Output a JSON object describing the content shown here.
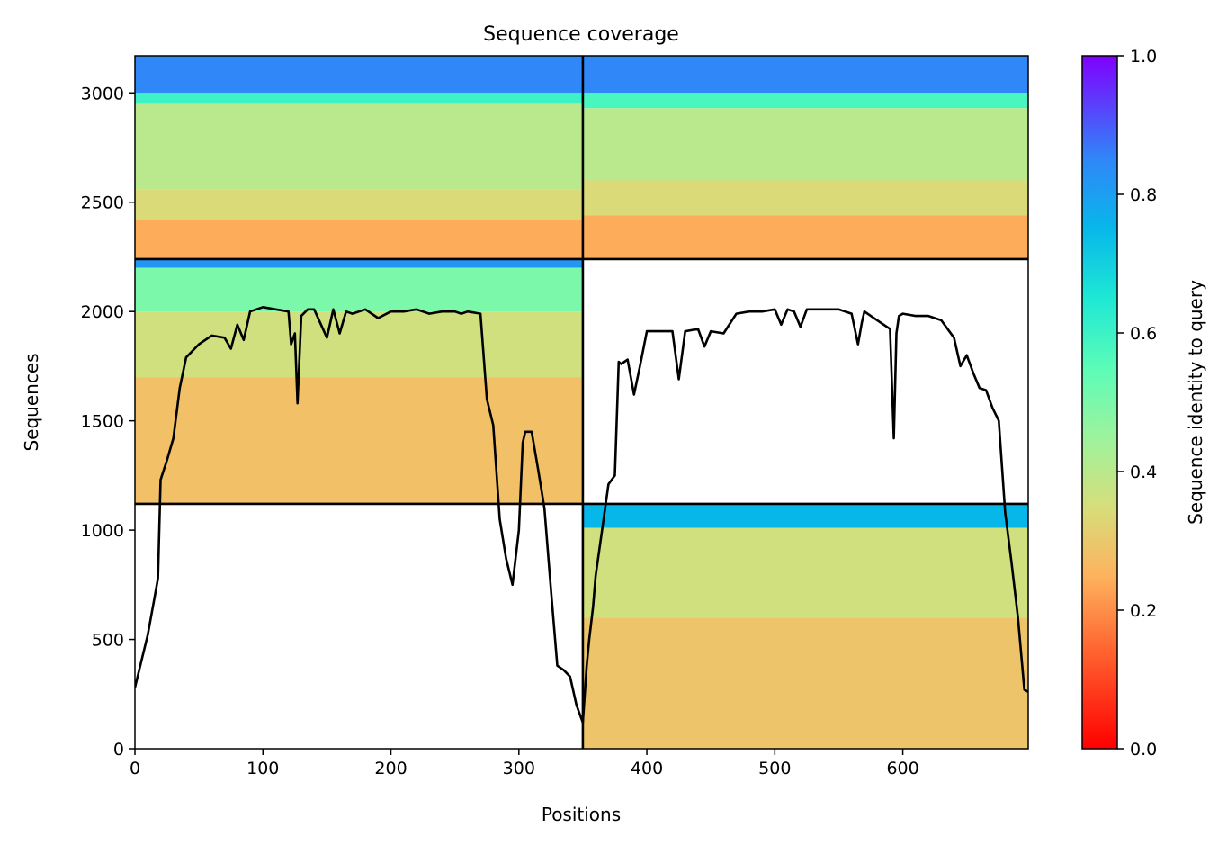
{
  "chart_data": {
    "type": "heatmap",
    "title": "Sequence coverage",
    "xlabel": "Positions",
    "ylabel": "Sequences",
    "xlim": [
      0,
      698
    ],
    "ylim": [
      0,
      3170
    ],
    "x_ticks": [
      0,
      100,
      200,
      300,
      400,
      500,
      600
    ],
    "y_ticks": [
      0,
      500,
      1000,
      1500,
      2000,
      2500,
      3000
    ],
    "grid": false,
    "chain_boundaries": {
      "x": [
        350
      ],
      "y": [
        1120,
        2240
      ]
    },
    "blocks": [
      {
        "x_range": [
          0,
          350
        ],
        "y_range": [
          2240,
          3170
        ],
        "bands": [
          {
            "y": [
              3000,
              3170
            ],
            "identity": 0.85
          },
          {
            "y": [
              2950,
              3000
            ],
            "identity": 0.6
          },
          {
            "y": [
              2560,
              2950
            ],
            "identity": 0.4
          },
          {
            "y": [
              2420,
              2560
            ],
            "identity": 0.34
          },
          {
            "y": [
              2240,
              2420
            ],
            "identity": 0.24
          }
        ]
      },
      {
        "x_range": [
          350,
          698
        ],
        "y_range": [
          2240,
          3170
        ],
        "bands": [
          {
            "y": [
              3000,
              3170
            ],
            "identity": 0.85
          },
          {
            "y": [
              2930,
              3000
            ],
            "identity": 0.58
          },
          {
            "y": [
              2600,
              2930
            ],
            "identity": 0.4
          },
          {
            "y": [
              2440,
              2600
            ],
            "identity": 0.34
          },
          {
            "y": [
              2240,
              2440
            ],
            "identity": 0.24
          }
        ]
      },
      {
        "x_range": [
          0,
          350
        ],
        "y_range": [
          1120,
          2240
        ],
        "bands": [
          {
            "y": [
              2200,
              2240
            ],
            "identity": 0.82
          },
          {
            "y": [
              2000,
              2200
            ],
            "identity": 0.5
          },
          {
            "y": [
              1700,
              2000
            ],
            "identity": 0.36
          },
          {
            "y": [
              1120,
              1700
            ],
            "identity": 0.28
          }
        ]
      },
      {
        "x_range": [
          350,
          698
        ],
        "y_range": [
          0,
          1120
        ],
        "bands": [
          {
            "y": [
              1010,
              1120
            ],
            "identity": 0.75
          },
          {
            "y": [
              600,
              1010
            ],
            "identity": 0.36
          },
          {
            "y": [
              0,
              600
            ],
            "identity": 0.29
          }
        ]
      }
    ],
    "coverage": {
      "x": [
        0,
        5,
        10,
        15,
        18,
        20,
        25,
        30,
        35,
        40,
        50,
        60,
        70,
        75,
        80,
        85,
        90,
        100,
        110,
        120,
        122,
        125,
        127,
        130,
        135,
        140,
        150,
        155,
        160,
        165,
        170,
        180,
        190,
        200,
        210,
        220,
        230,
        240,
        250,
        255,
        260,
        270,
        275,
        280,
        285,
        290,
        295,
        300,
        303,
        305,
        310,
        315,
        320,
        325,
        330,
        335,
        340,
        345,
        350,
        353,
        355,
        358,
        360,
        365,
        370,
        375,
        378,
        380,
        385,
        390,
        395,
        400,
        410,
        420,
        425,
        430,
        440,
        445,
        450,
        460,
        470,
        480,
        490,
        500,
        505,
        510,
        515,
        520,
        525,
        530,
        540,
        550,
        560,
        565,
        568,
        570,
        575,
        580,
        590,
        593,
        595,
        597,
        600,
        610,
        620,
        630,
        640,
        645,
        650,
        655,
        660,
        665,
        670,
        675,
        680,
        685,
        690,
        695,
        698
      ],
      "y": [
        280,
        400,
        520,
        680,
        780,
        1230,
        1320,
        1420,
        1650,
        1790,
        1850,
        1890,
        1880,
        1830,
        1940,
        1870,
        2000,
        2020,
        2010,
        2000,
        1850,
        1900,
        1580,
        1980,
        2010,
        2010,
        1880,
        2010,
        1900,
        2000,
        1990,
        2010,
        1970,
        2000,
        2000,
        2010,
        1990,
        2000,
        2000,
        1990,
        2000,
        1990,
        1600,
        1480,
        1050,
        870,
        750,
        1000,
        1400,
        1450,
        1450,
        1280,
        1100,
        730,
        380,
        360,
        330,
        200,
        120,
        380,
        500,
        650,
        790,
        1000,
        1210,
        1250,
        1770,
        1760,
        1780,
        1620,
        1760,
        1910,
        1910,
        1910,
        1690,
        1910,
        1920,
        1840,
        1910,
        1900,
        1990,
        2000,
        2000,
        2010,
        1940,
        2010,
        2000,
        1930,
        2010,
        2010,
        2010,
        2010,
        1990,
        1850,
        1950,
        2000,
        1980,
        1960,
        1920,
        1420,
        1900,
        1980,
        1990,
        1980,
        1980,
        1960,
        1880,
        1750,
        1800,
        1720,
        1650,
        1640,
        1560,
        1500,
        1080,
        850,
        600,
        270,
        260
      ]
    },
    "colorbar": {
      "label": "Sequence identity to query",
      "ticks": [
        "0.0",
        "0.2",
        "0.4",
        "0.6",
        "0.8",
        "1.0"
      ],
      "range": [
        0,
        1
      ],
      "colormap": "rainbow_r"
    }
  }
}
